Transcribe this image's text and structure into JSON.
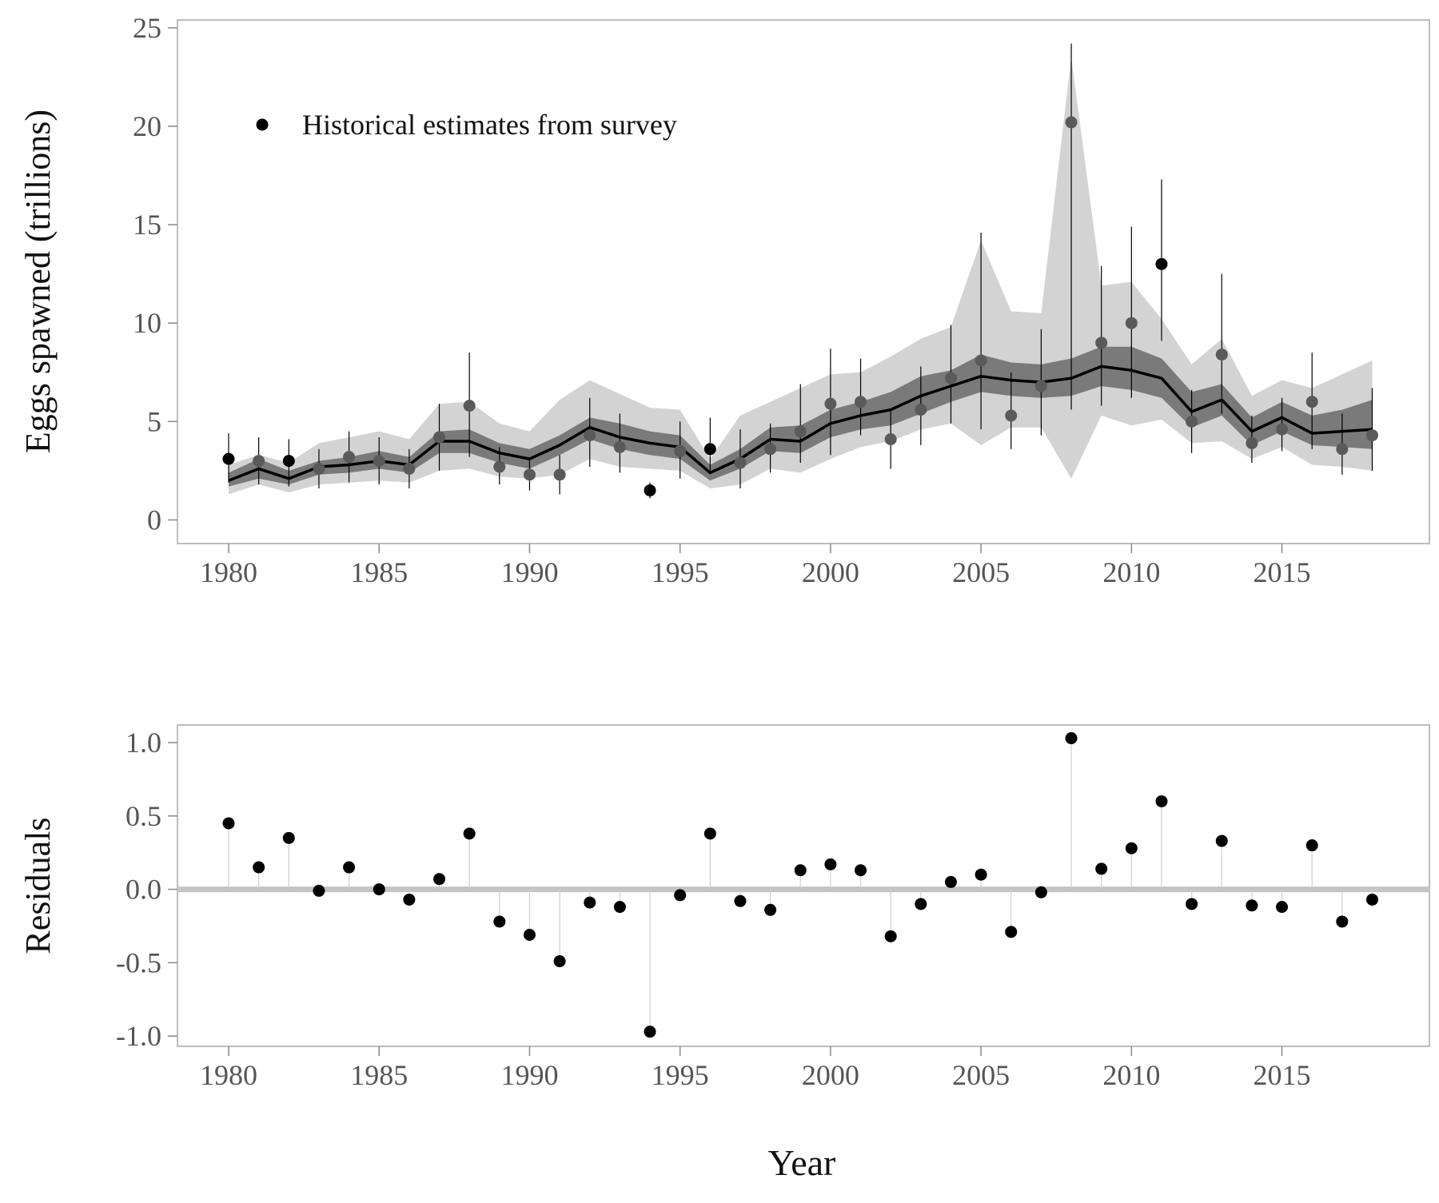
{
  "chart_data": [
    {
      "type": "line",
      "panel": "top",
      "title": "",
      "xlabel": "",
      "ylabel": "Eggs spawned (trillions)",
      "xlim": [
        1978.3,
        2019.9
      ],
      "ylim": [
        -1.2,
        25.4
      ],
      "xticks": [
        1980,
        1985,
        1990,
        1995,
        2000,
        2005,
        2010,
        2015
      ],
      "yticks": [
        0,
        5,
        10,
        15,
        20,
        25
      ],
      "grid": false,
      "legend": {
        "position": "top-left",
        "entries": [
          "Historical estimates from survey"
        ]
      },
      "years": [
        1980,
        1981,
        1982,
        1983,
        1984,
        1985,
        1986,
        1987,
        1988,
        1989,
        1990,
        1991,
        1992,
        1993,
        1994,
        1995,
        1996,
        1997,
        1998,
        1999,
        2000,
        2001,
        2002,
        2003,
        2004,
        2005,
        2006,
        2007,
        2008,
        2009,
        2010,
        2011,
        2012,
        2013,
        2014,
        2015,
        2016,
        2017,
        2018
      ],
      "model_median": [
        2.0,
        2.6,
        2.1,
        2.7,
        2.8,
        3.0,
        2.8,
        4.0,
        4.0,
        3.4,
        3.1,
        3.8,
        4.7,
        4.2,
        3.9,
        3.7,
        2.4,
        3.1,
        4.1,
        4.0,
        4.9,
        5.3,
        5.6,
        6.3,
        6.8,
        7.3,
        7.1,
        7.0,
        7.2,
        7.8,
        7.6,
        7.2,
        5.5,
        6.1,
        4.5,
        5.2,
        4.4,
        4.5,
        4.6
      ],
      "inner_band_low": [
        1.7,
        2.1,
        1.8,
        2.3,
        2.4,
        2.6,
        2.4,
        3.4,
        3.4,
        2.9,
        2.6,
        3.3,
        4.1,
        3.6,
        3.3,
        3.1,
        2.0,
        2.6,
        3.5,
        3.4,
        4.2,
        4.6,
        4.8,
        5.4,
        6.0,
        6.5,
        6.3,
        6.2,
        6.3,
        6.8,
        6.6,
        6.2,
        4.7,
        5.3,
        3.8,
        4.5,
        3.8,
        3.7,
        3.6
      ],
      "inner_band_high": [
        2.4,
        3.1,
        2.5,
        3.0,
        3.2,
        3.5,
        3.2,
        4.5,
        4.6,
        3.9,
        3.6,
        4.3,
        5.2,
        4.9,
        4.5,
        4.3,
        2.8,
        3.6,
        4.7,
        4.8,
        5.6,
        6.0,
        6.5,
        7.3,
        7.6,
        8.4,
        8.0,
        7.9,
        8.2,
        8.8,
        8.8,
        8.2,
        6.5,
        6.9,
        5.2,
        6.0,
        5.3,
        5.6,
        6.1
      ],
      "outer_band_low": [
        1.3,
        1.8,
        1.4,
        1.8,
        1.9,
        2.0,
        1.9,
        2.5,
        2.6,
        2.2,
        2.1,
        2.3,
        3.1,
        2.7,
        2.6,
        2.5,
        1.6,
        1.8,
        2.6,
        2.4,
        3.1,
        3.7,
        4.0,
        4.6,
        4.9,
        3.8,
        4.7,
        4.7,
        2.1,
        5.3,
        4.8,
        5.1,
        3.9,
        4.0,
        3.1,
        3.7,
        2.8,
        2.7,
        2.5
      ],
      "outer_band_high": [
        2.8,
        3.3,
        2.9,
        3.9,
        4.2,
        4.5,
        4.1,
        5.9,
        6.0,
        4.9,
        4.5,
        6.1,
        7.1,
        6.4,
        5.7,
        5.6,
        3.1,
        5.3,
        6.0,
        6.7,
        7.4,
        7.5,
        8.3,
        9.2,
        9.8,
        14.2,
        10.6,
        10.5,
        23.5,
        11.9,
        12.1,
        10.2,
        7.9,
        9.2,
        6.3,
        7.1,
        6.7,
        7.4,
        8.1
      ],
      "series": [
        {
          "name": "Historical estimates from survey",
          "x": [
            1980,
            1981,
            1982,
            1983,
            1984,
            1985,
            1986,
            1987,
            1988,
            1989,
            1990,
            1991,
            1992,
            1993,
            1994,
            1995,
            1996,
            1997,
            1998,
            1999,
            2000,
            2001,
            2002,
            2003,
            2004,
            2005,
            2006,
            2007,
            2008,
            2009,
            2010,
            2011,
            2012,
            2013,
            2014,
            2015,
            2016,
            2017,
            2018
          ],
          "y": [
            3.1,
            3.0,
            3.0,
            2.6,
            3.2,
            3.0,
            2.6,
            4.2,
            5.8,
            2.7,
            2.3,
            2.3,
            4.3,
            3.7,
            1.5,
            3.5,
            3.6,
            2.9,
            3.6,
            4.5,
            5.9,
            6.0,
            4.1,
            5.6,
            7.2,
            8.1,
            5.3,
            6.8,
            20.2,
            9.0,
            10.0,
            13.0,
            5.0,
            8.4,
            3.9,
            4.6,
            6.0,
            3.6,
            4.3
          ],
          "err_low": [
            1.9,
            1.8,
            1.7,
            1.6,
            1.9,
            1.8,
            1.6,
            2.5,
            3.2,
            1.8,
            1.5,
            1.3,
            2.7,
            2.4,
            1.1,
            2.1,
            2.5,
            1.6,
            2.4,
            2.9,
            3.3,
            4.3,
            2.6,
            3.8,
            4.9,
            4.6,
            3.6,
            4.3,
            5.6,
            5.8,
            6.2,
            9.1,
            3.4,
            5.4,
            2.9,
            3.5,
            3.6,
            2.3,
            2.5
          ],
          "err_high": [
            4.4,
            4.2,
            4.1,
            3.6,
            4.5,
            4.2,
            3.6,
            5.9,
            8.5,
            3.7,
            3.1,
            3.3,
            6.2,
            5.4,
            1.9,
            5.0,
            5.2,
            4.6,
            4.9,
            6.9,
            8.7,
            8.2,
            5.6,
            7.8,
            9.9,
            14.6,
            7.5,
            9.7,
            24.2,
            12.9,
            14.9,
            17.3,
            6.6,
            12.5,
            5.3,
            6.2,
            8.5,
            5.4,
            6.7
          ]
        }
      ]
    },
    {
      "type": "scatter",
      "panel": "bottom",
      "title": "",
      "xlabel": "Year",
      "ylabel": "Residuals",
      "xlim": [
        1978.3,
        2019.9
      ],
      "ylim": [
        -1.07,
        1.12
      ],
      "xticks": [
        1980,
        1985,
        1990,
        1995,
        2000,
        2005,
        2010,
        2015
      ],
      "yticks": [
        -1.0,
        -0.5,
        0.0,
        0.5,
        1.0
      ],
      "ytick_labels": [
        "-1.0",
        "-0.5",
        "0.0",
        "0.5",
        "1.0"
      ],
      "grid": false,
      "reference_line": 0,
      "series": [
        {
          "x": [
            1980,
            1981,
            1982,
            1983,
            1984,
            1985,
            1986,
            1987,
            1988,
            1989,
            1990,
            1991,
            1992,
            1993,
            1994,
            1995,
            1996,
            1997,
            1998,
            1999,
            2000,
            2001,
            2002,
            2003,
            2004,
            2005,
            2006,
            2007,
            2008,
            2009,
            2010,
            2011,
            2012,
            2013,
            2014,
            2015,
            2016,
            2017,
            2018
          ],
          "y": [
            0.45,
            0.15,
            0.35,
            -0.01,
            0.15,
            0.0,
            -0.07,
            0.07,
            0.38,
            -0.22,
            -0.31,
            -0.49,
            -0.09,
            -0.12,
            -0.97,
            -0.04,
            0.38,
            -0.08,
            -0.14,
            0.13,
            0.17,
            0.13,
            -0.32,
            -0.1,
            0.05,
            0.1,
            -0.29,
            -0.02,
            1.03,
            0.14,
            0.28,
            0.6,
            -0.1,
            0.33,
            -0.11,
            -0.12,
            0.3,
            -0.22,
            -0.07
          ]
        }
      ]
    }
  ]
}
